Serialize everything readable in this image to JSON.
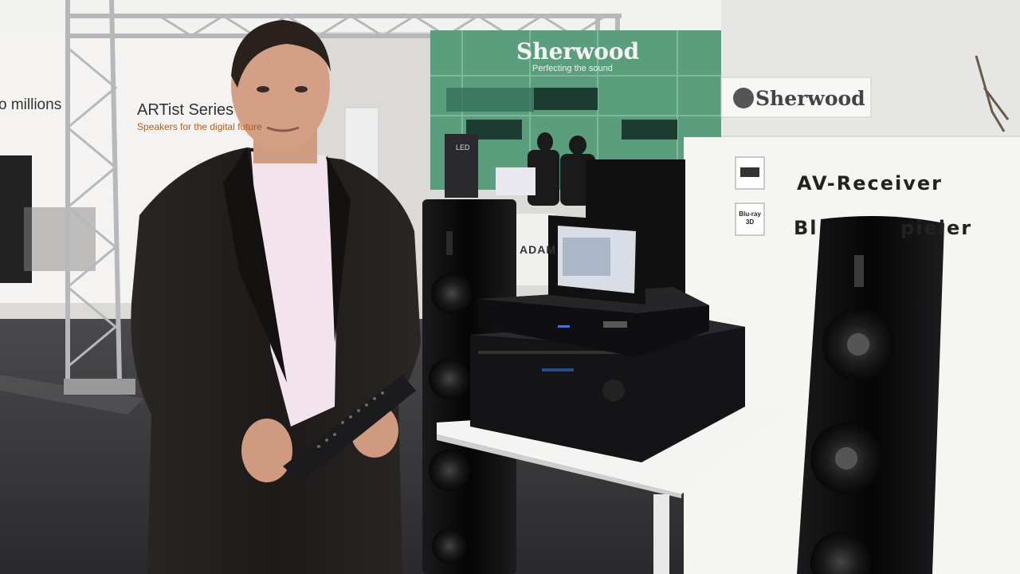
{
  "scene": {
    "description_visible_text": true
  },
  "left_banner": {
    "line1": "o millions",
    "series": "ARTist Series",
    "tagline": "Speakers for the digital future"
  },
  "back_booth": {
    "brand": "Sherwood",
    "tagline": "Perfecting the sound",
    "small_panel_label": "LED"
  },
  "right_header_sign": {
    "brand": "Sherwood"
  },
  "adam_sign": "ADAM",
  "display_panel": {
    "line1": "AV-Receiver",
    "line2": "Bl          pieler",
    "badge_top": "hdmi-logo",
    "badge_bottom": "Blu-ray 3D"
  },
  "colors": {
    "floor": "#3a3a3c",
    "wall": "#e8e6e3",
    "booth_green": "#5a9a78",
    "suit": "#1f1c1b",
    "shirt": "#f1e2ec",
    "speaker": "#0b0b0c",
    "panel": "#f5f5f2"
  }
}
